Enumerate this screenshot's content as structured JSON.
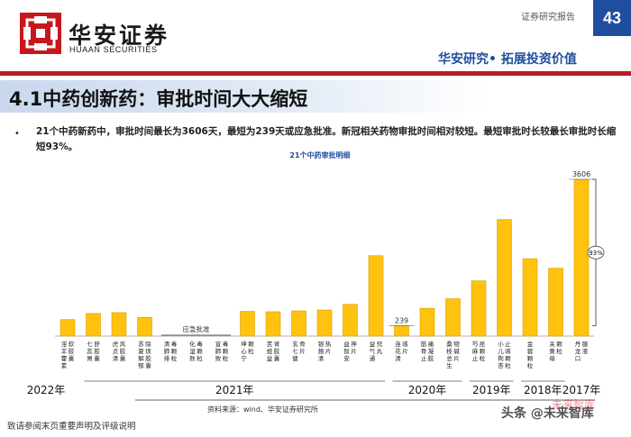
{
  "header": {
    "logo_cn": "华安证券",
    "logo_en": "HUAAN SECURITIES",
    "report_label": "证券研究报告",
    "page_number": "43",
    "slogan": "华安研究• 拓展投资价值"
  },
  "section_title": "4.1中药创新药：审批时间大大缩短",
  "bullet_text": "21个中药新药中，审批时间最长为3606天，最短为239天或应急批准。新冠相关药物审批时间相对较短。最短审批时长较最长审批时长缩短93%。",
  "footnote": "致请参阅末页重要声明及评级说明",
  "watermark": "头条 @未来智库",
  "watermark2": "未来智库",
  "colors": {
    "bar": "#FFC20E",
    "bar_stroke": "#D9A000",
    "brand_red": "#C8161D",
    "brand_blue": "#1F4E9E"
  },
  "chart_data": {
    "type": "bar",
    "title": "21个中药审批明细",
    "source": "资料来源：wind、华安证券研究所",
    "categories": [
      "淫羊藿素软胶囊",
      "七蕊胃舒胶囊",
      "虎贞清风胶囊",
      "苏夏解郁除烦胶囊",
      "清肺排毒颗粒",
      "化湿败毒颗粒",
      "宣肺败毒颗粒",
      "坤心宁颗粒",
      "芪蛭益肾胶囊",
      "玄七健骨片",
      "银翘清热片",
      "益智安神片",
      "益气通窍丸",
      "连花清咳片",
      "筋骨止痛凝胶",
      "桑枝总生物碱片",
      "芍麻止痉颗粒",
      "小儿荆杏止咳颗粒",
      "金蓉颗粒",
      "关黄母颗粒",
      "丹龙口服液"
    ],
    "values": [
      380,
      520,
      540,
      430,
      0,
      0,
      0,
      570,
      560,
      580,
      600,
      730,
      1850,
      239,
      640,
      860,
      1270,
      2680,
      1780,
      1560,
      3606
    ],
    "emergency_label": "应急批准",
    "value_labels": [
      {
        "index": 13,
        "text": "239"
      },
      {
        "index": 20,
        "text": "3606"
      }
    ],
    "reduction_label": "93%",
    "year_groups": [
      {
        "label": "2022年",
        "from": 0,
        "to": 0
      },
      {
        "label": "2021年",
        "from": 1,
        "to": 12
      },
      {
        "label": "2020年",
        "from": 13,
        "to": 15
      },
      {
        "label": "2019年",
        "from": 16,
        "to": 17
      },
      {
        "label": "2018年",
        "from": 18,
        "to": 19
      },
      {
        "label": "2017年",
        "from": 20,
        "to": 20
      }
    ],
    "ylim": [
      0,
      3700
    ],
    "xlabel": "",
    "ylabel": ""
  }
}
